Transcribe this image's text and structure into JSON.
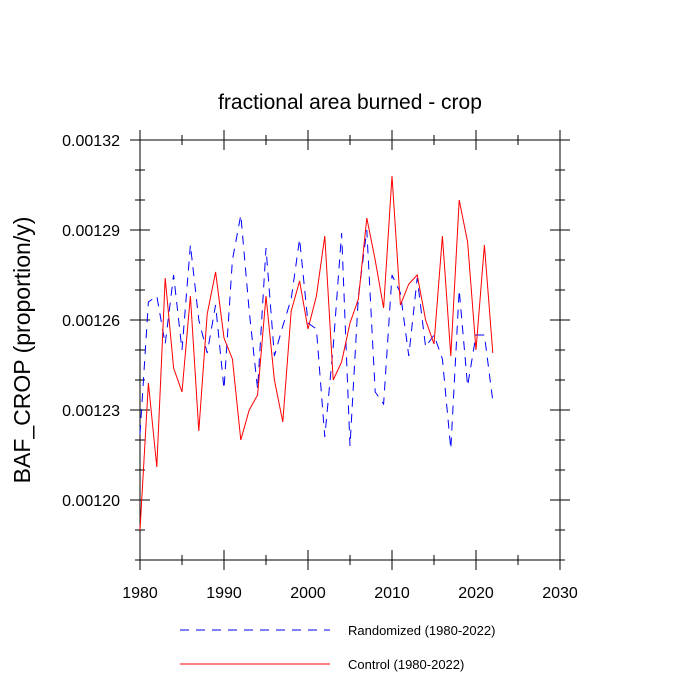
{
  "chart_data": {
    "type": "line",
    "title": "fractional area burned - crop",
    "xlabel": "",
    "ylabel": "BAF_CROP  (proportion/y)",
    "xlim": [
      1980,
      2030
    ],
    "ylim": [
      0.00118,
      0.00132
    ],
    "x_ticks": [
      "1980",
      "1990",
      "2000",
      "2010",
      "2020",
      "2030"
    ],
    "y_ticks": [
      "0.00120",
      "0.00123",
      "0.00126",
      "0.00129",
      "0.00132"
    ],
    "y_tick_values": [
      0.0012,
      0.00123,
      0.00126,
      0.00129,
      0.00132
    ],
    "grid": false,
    "legend_position": "bottom",
    "x": [
      1980,
      1981,
      1982,
      1983,
      1984,
      1985,
      1986,
      1987,
      1988,
      1989,
      1990,
      1991,
      1992,
      1993,
      1994,
      1995,
      1996,
      1997,
      1998,
      1999,
      2000,
      2001,
      2002,
      2003,
      2004,
      2005,
      2006,
      2007,
      2008,
      2009,
      2010,
      2011,
      2012,
      2013,
      2014,
      2015,
      2016,
      2017,
      2018,
      2019,
      2020,
      2021,
      2022
    ],
    "series": [
      {
        "name": "Randomized (1980-2022)",
        "color": "#0000ff",
        "dash": "dashed",
        "values": [
          0.001222,
          0.001266,
          0.001268,
          0.001252,
          0.001275,
          0.00125,
          0.001285,
          0.00126,
          0.001249,
          0.001265,
          0.001237,
          0.00128,
          0.001295,
          0.001263,
          0.001237,
          0.001284,
          0.001248,
          0.001258,
          0.001267,
          0.001287,
          0.001259,
          0.001257,
          0.001221,
          0.001251,
          0.001289,
          0.001218,
          0.001268,
          0.00129,
          0.001236,
          0.001232,
          0.001275,
          0.001269,
          0.001248,
          0.001274,
          0.001251,
          0.001255,
          0.001247,
          0.001217,
          0.00127,
          0.001238,
          0.001255,
          0.001255,
          0.001233
        ]
      },
      {
        "name": "Control (1980-2022)",
        "color": "#ff0000",
        "dash": "solid",
        "values": [
          0.00119,
          0.001239,
          0.001211,
          0.001274,
          0.001244,
          0.001236,
          0.001268,
          0.001223,
          0.001262,
          0.001276,
          0.001254,
          0.001247,
          0.00122,
          0.00123,
          0.001235,
          0.001268,
          0.00124,
          0.001226,
          0.001263,
          0.001273,
          0.001257,
          0.001268,
          0.001288,
          0.00124,
          0.001246,
          0.001259,
          0.001267,
          0.001294,
          0.00128,
          0.001264,
          0.001308,
          0.001265,
          0.001272,
          0.001275,
          0.00126,
          0.001252,
          0.001288,
          0.001248,
          0.0013,
          0.001286,
          0.00125,
          0.001285,
          0.001249
        ]
      }
    ]
  }
}
